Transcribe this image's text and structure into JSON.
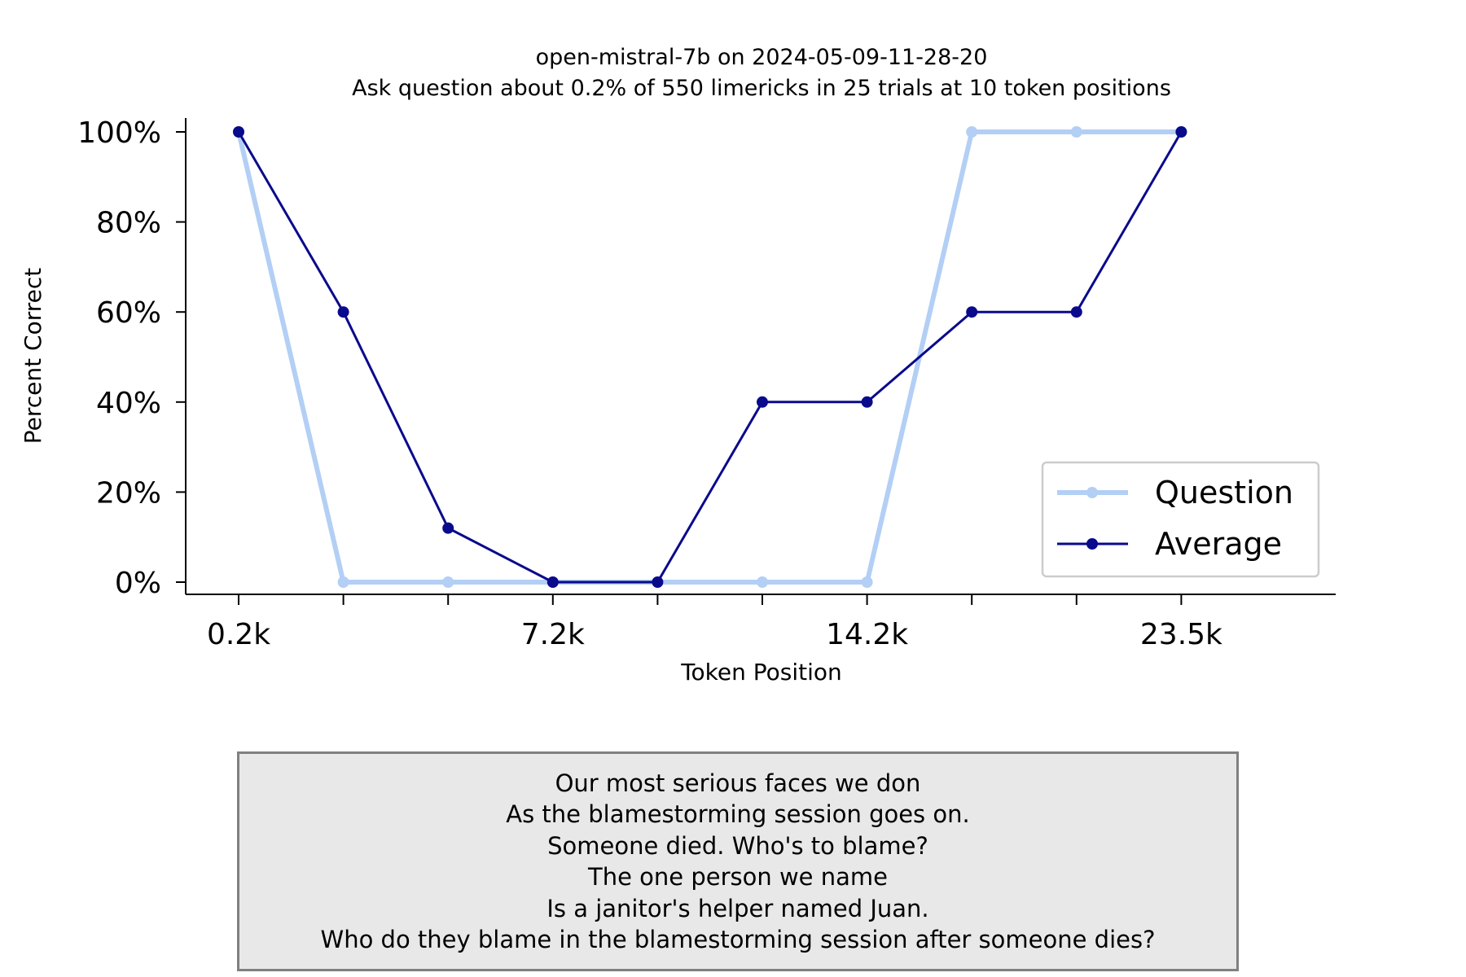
{
  "chart_data": {
    "type": "line",
    "title": [
      "open-mistral-7b on 2024-05-09-11-28-20",
      "Ask question about 0.2% of 550 limericks in 25 trials at 10 token positions"
    ],
    "xlabel": "Token Position",
    "ylabel": "Percent Correct",
    "x_tick_labels": [
      "0.2k",
      "",
      "",
      "7.2k",
      "",
      "",
      "14.2k",
      "",
      "",
      "23.5k"
    ],
    "y_ticks": [
      0,
      20,
      40,
      60,
      80,
      100
    ],
    "y_tick_labels": [
      "0%",
      "20%",
      "40%",
      "60%",
      "80%",
      "100%"
    ],
    "ylim": [
      0,
      100
    ],
    "legend_position": "lower-right",
    "series": [
      {
        "name": "Question",
        "color": "#b3cff5",
        "values": [
          100,
          0,
          0,
          0,
          0,
          0,
          0,
          100,
          100,
          100
        ]
      },
      {
        "name": "Average",
        "color": "#0a0a8c",
        "values": [
          100,
          60,
          12,
          0,
          0,
          40,
          40,
          60,
          60,
          100
        ]
      }
    ]
  },
  "text_box": {
    "lines": [
      "Our most serious faces we don",
      "As the blamestorming session goes on.",
      "Someone died. Who's to blame?",
      "The one person we name",
      "Is a janitor's helper named Juan.",
      "Who do they blame in the blamestorming session after someone dies?"
    ]
  }
}
